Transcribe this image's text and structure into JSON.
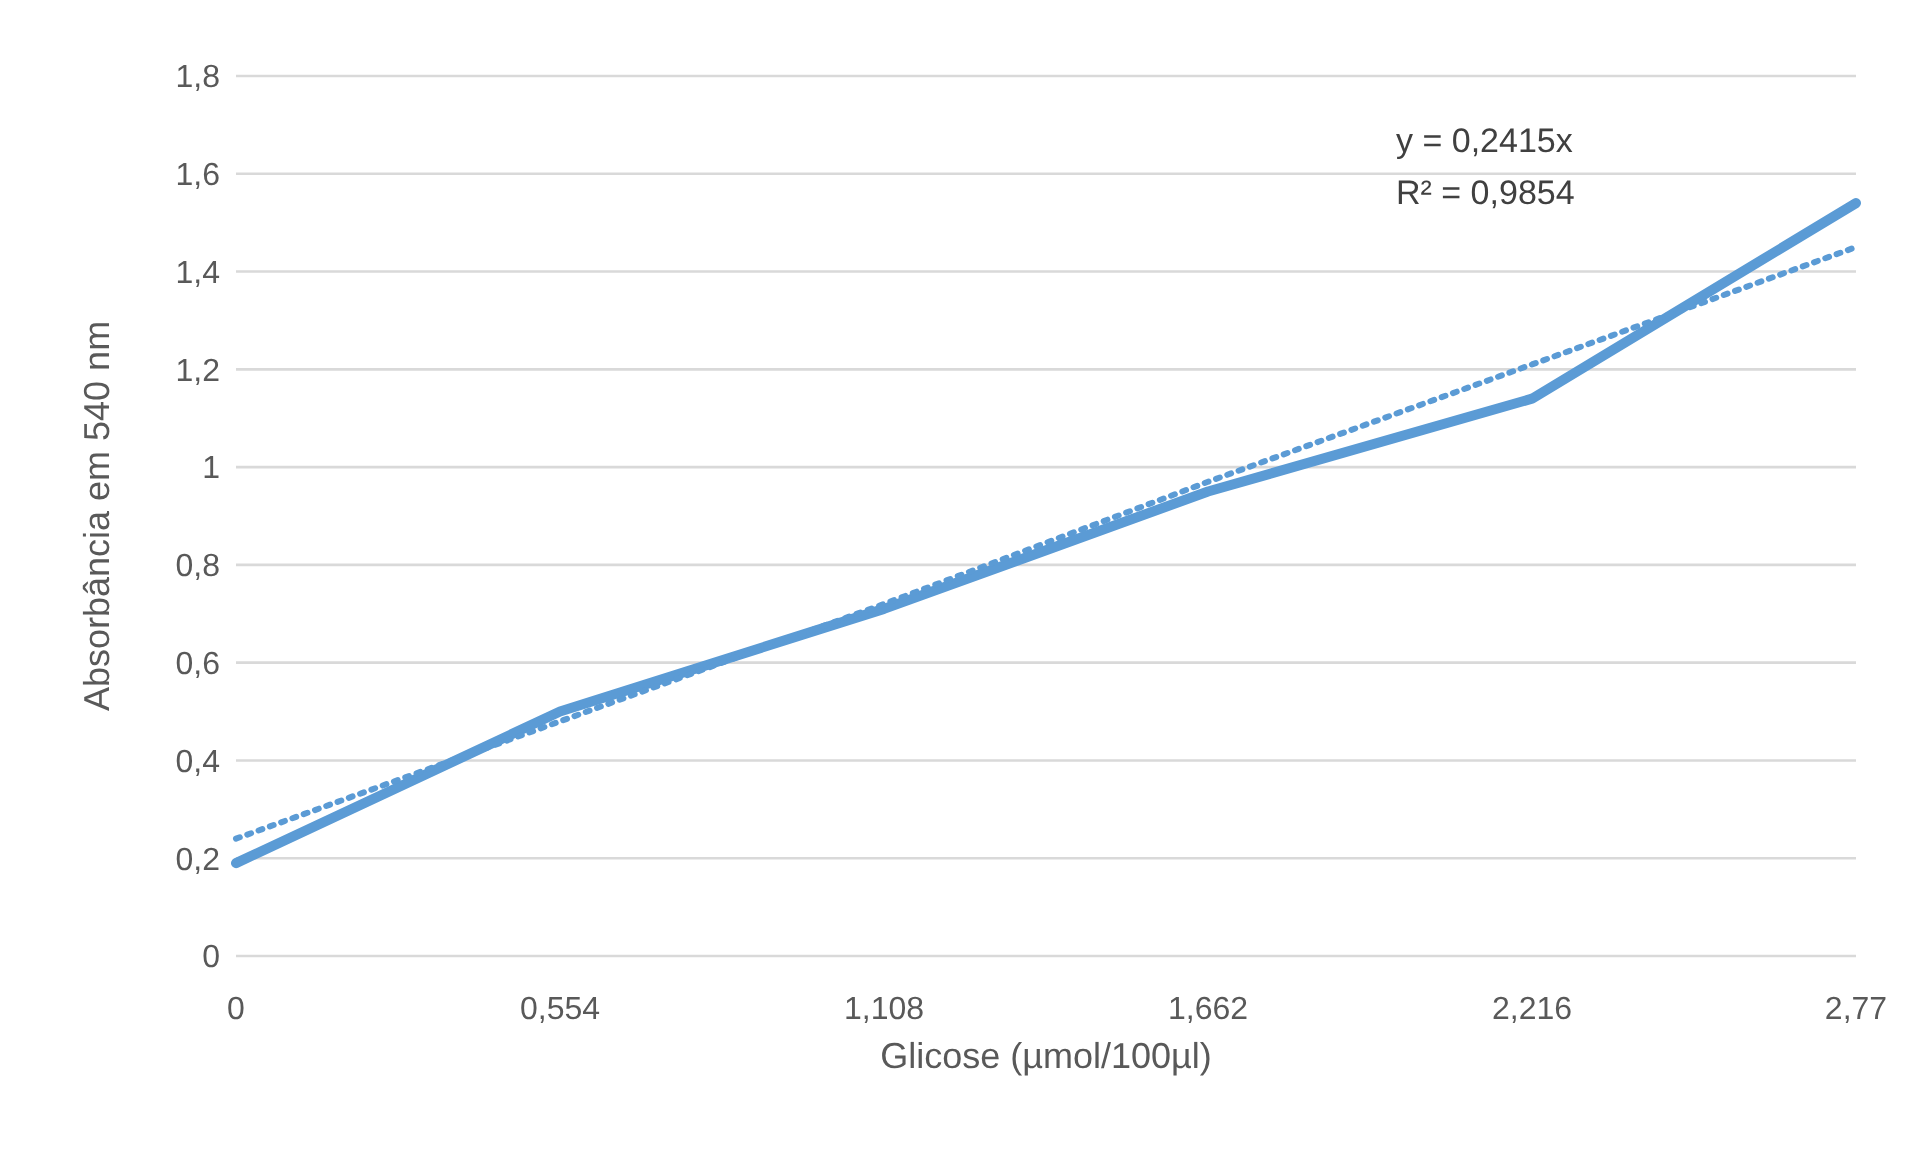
{
  "chart_data": {
    "type": "line",
    "xlabel": "Glicose (µmol/100µl)",
    "ylabel": "Absorbância em 540 nm",
    "categories": [
      "0",
      "0,554",
      "1,108",
      "1,662",
      "2,216",
      "2,77"
    ],
    "series": [
      {
        "color": "#5b9bd5",
        "values": [
          0.19,
          0.5,
          0.71,
          0.95,
          1.14,
          1.54
        ],
        "line_style": "solid"
      },
      {
        "type": "line",
        "color": "#5b9bd5",
        "values": [
          0.24,
          0.48,
          0.72,
          0.97,
          1.21,
          1.45
        ],
        "line_style": "dotted"
      }
    ],
    "ylim": [
      0,
      1.8
    ],
    "yticks": [
      0,
      {
        "value": 0.2,
        "label": "0,2"
      },
      {
        "value": 0.4,
        "label": "0,4"
      },
      {
        "value": 0.6,
        "label": "0,6"
      },
      {
        "value": 0.8,
        "label": "0,8"
      },
      1,
      {
        "value": 1.2,
        "label": "1,2"
      },
      {
        "value": 1.4,
        "label": "1,4"
      },
      {
        "value": 1.6,
        "label": "1,6"
      },
      {
        "value": 1.8,
        "label": "1,8"
      }
    ],
    "grid": "y",
    "legend": false,
    "marker": "none",
    "annotations": [
      "y = 0,2415x",
      "R² = 0,9854"
    ]
  }
}
